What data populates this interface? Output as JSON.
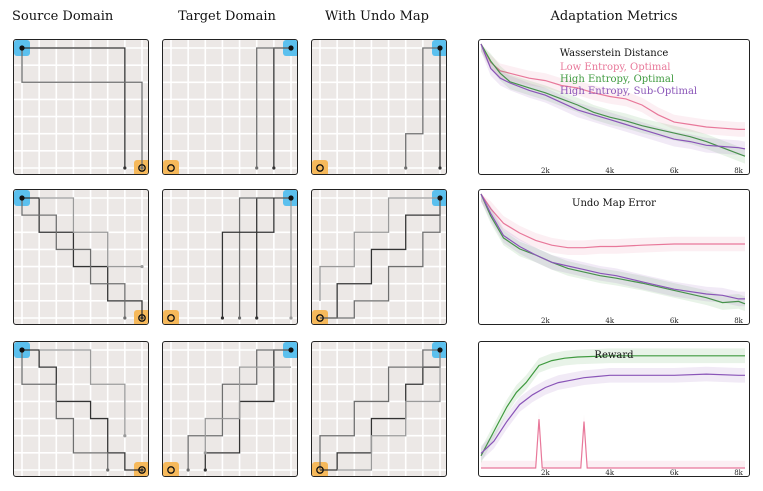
{
  "headers": {
    "source": "Source Domain",
    "target": "Target Domain",
    "undo": "With Undo Map",
    "metrics": "Adaptation Metrics"
  },
  "colors": {
    "low_entropy_optimal": "#e8789a",
    "high_entropy_optimal": "#3f9a3f",
    "high_entropy_suboptimal": "#8a55b8",
    "start_marker": "#5bc0ee",
    "goal_marker": "#f6b95b",
    "grid_bg": "#ece8e6"
  },
  "grid_panels": [
    {
      "row": "row-1",
      "source": "source-domain-grid",
      "target": "target-domain-grid",
      "undo": "undo-map-grid"
    },
    {
      "row": "row-2",
      "source": "source-domain-grid",
      "target": "target-domain-grid",
      "undo": "undo-map-grid"
    },
    {
      "row": "row-3",
      "source": "source-domain-grid",
      "target": "target-domain-grid",
      "undo": "undo-map-grid"
    }
  ],
  "chart_data": [
    {
      "type": "line",
      "title": "Wasserstein Distance",
      "xlabel": "",
      "ylabel": "",
      "x_ticks": [
        "2k",
        "4k",
        "6k",
        "8k"
      ],
      "xlim": [
        0,
        8200
      ],
      "ylim": [
        0,
        1
      ],
      "legend_position": "top-right",
      "legend": [
        "Low Entropy, Optimal",
        "High Entropy, Optimal",
        "High Entropy, Sub-Optimal"
      ],
      "series": [
        {
          "name": "Low Entropy, Optimal",
          "color_key": "low_entropy_optimal",
          "x": [
            0,
            300,
            600,
            900,
            1500,
            2000,
            2500,
            3000,
            3500,
            4000,
            4500,
            5000,
            5500,
            6000,
            6500,
            7000,
            7500,
            8000,
            8200
          ],
          "y": [
            1.0,
            0.85,
            0.78,
            0.76,
            0.72,
            0.7,
            0.66,
            0.64,
            0.6,
            0.57,
            0.55,
            0.5,
            0.42,
            0.36,
            0.34,
            0.32,
            0.31,
            0.3,
            0.3
          ]
        },
        {
          "name": "High Entropy, Optimal",
          "color_key": "high_entropy_optimal",
          "x": [
            0,
            300,
            600,
            900,
            1500,
            2000,
            2500,
            3000,
            3500,
            4000,
            4500,
            5000,
            5500,
            6000,
            6500,
            7000,
            7500,
            8000,
            8200
          ],
          "y": [
            1.0,
            0.86,
            0.76,
            0.69,
            0.64,
            0.6,
            0.55,
            0.5,
            0.44,
            0.4,
            0.37,
            0.33,
            0.3,
            0.27,
            0.24,
            0.2,
            0.15,
            0.1,
            0.08
          ]
        },
        {
          "name": "High Entropy, Sub-Optimal",
          "color_key": "high_entropy_suboptimal",
          "x": [
            0,
            300,
            600,
            900,
            1500,
            2000,
            2500,
            3000,
            3500,
            4000,
            4500,
            5000,
            5500,
            6000,
            6500,
            7000,
            7500,
            8000,
            8200
          ],
          "y": [
            1.0,
            0.8,
            0.72,
            0.68,
            0.62,
            0.58,
            0.52,
            0.46,
            0.42,
            0.38,
            0.34,
            0.3,
            0.26,
            0.22,
            0.2,
            0.17,
            0.16,
            0.15,
            0.14
          ]
        }
      ]
    },
    {
      "type": "line",
      "title": "Undo Map Error",
      "xlabel": "",
      "ylabel": "",
      "x_ticks": [
        "2k",
        "4k",
        "6k",
        "8k"
      ],
      "xlim": [
        0,
        8200
      ],
      "ylim": [
        0,
        1
      ],
      "series": [
        {
          "name": "Low Entropy, Optimal",
          "color_key": "low_entropy_optimal",
          "x": [
            0,
            300,
            700,
            1200,
            1700,
            2200,
            2700,
            3200,
            3700,
            4200,
            5000,
            6000,
            7000,
            8000,
            8200
          ],
          "y": [
            1.0,
            0.88,
            0.76,
            0.68,
            0.62,
            0.58,
            0.56,
            0.56,
            0.57,
            0.57,
            0.58,
            0.59,
            0.59,
            0.59,
            0.59
          ]
        },
        {
          "name": "High Entropy, Optimal",
          "color_key": "high_entropy_optimal",
          "x": [
            0,
            300,
            700,
            1200,
            1700,
            2200,
            2700,
            3200,
            3700,
            4200,
            5000,
            6000,
            7000,
            7500,
            8000,
            8200
          ],
          "y": [
            1.0,
            0.82,
            0.64,
            0.55,
            0.5,
            0.44,
            0.39,
            0.36,
            0.33,
            0.31,
            0.27,
            0.21,
            0.15,
            0.11,
            0.12,
            0.1
          ]
        },
        {
          "name": "High Entropy, Sub-Optimal",
          "color_key": "high_entropy_suboptimal",
          "x": [
            0,
            300,
            700,
            1200,
            1700,
            2200,
            2700,
            3200,
            3700,
            4200,
            5000,
            6000,
            7000,
            7500,
            8000,
            8200
          ],
          "y": [
            1.0,
            0.84,
            0.66,
            0.57,
            0.5,
            0.44,
            0.41,
            0.38,
            0.35,
            0.33,
            0.28,
            0.22,
            0.18,
            0.17,
            0.14,
            0.14
          ]
        }
      ]
    },
    {
      "type": "line",
      "title": "Reward",
      "xlabel": "",
      "ylabel": "",
      "x_ticks": [
        "2k",
        "4k",
        "6k",
        "8k"
      ],
      "xlim": [
        0,
        8200
      ],
      "ylim": [
        0,
        1
      ],
      "series": [
        {
          "name": "Low Entropy, Optimal",
          "color_key": "low_entropy_optimal",
          "x": [
            0,
            1500,
            1700,
            1800,
            1900,
            2100,
            3100,
            3200,
            3300,
            3450,
            4000,
            8200
          ],
          "y": [
            0.0,
            0.0,
            0.0,
            0.4,
            0.0,
            0.0,
            0.0,
            0.38,
            0.0,
            0.0,
            0.0,
            0.0
          ]
        },
        {
          "name": "High Entropy, Optimal",
          "color_key": "high_entropy_optimal",
          "x": [
            0,
            400,
            800,
            1100,
            1400,
            1800,
            2200,
            2600,
            3000,
            4000,
            5000,
            6000,
            7000,
            8000,
            8200
          ],
          "y": [
            0.1,
            0.3,
            0.5,
            0.62,
            0.7,
            0.84,
            0.88,
            0.9,
            0.91,
            0.92,
            0.92,
            0.92,
            0.92,
            0.92,
            0.92
          ]
        },
        {
          "name": "High Entropy, Sub-Optimal",
          "color_key": "high_entropy_suboptimal",
          "x": [
            0,
            400,
            800,
            1200,
            1600,
            2000,
            2400,
            2800,
            3200,
            3600,
            4000,
            5000,
            6000,
            7000,
            8000,
            8200
          ],
          "y": [
            0.12,
            0.22,
            0.38,
            0.52,
            0.6,
            0.66,
            0.7,
            0.72,
            0.74,
            0.75,
            0.76,
            0.76,
            0.76,
            0.77,
            0.76,
            0.76
          ]
        }
      ]
    }
  ]
}
